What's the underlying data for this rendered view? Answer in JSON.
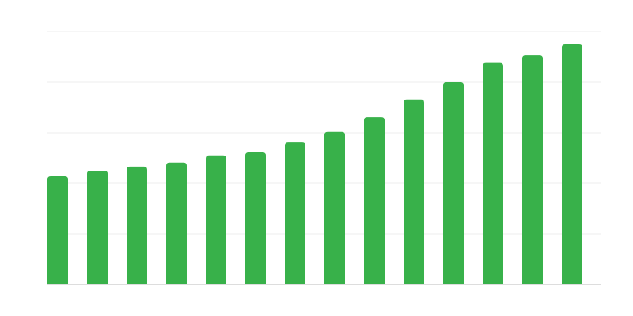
{
  "chart_data": {
    "type": "bar",
    "values": [
      2.14,
      2.25,
      2.33,
      2.41,
      2.55,
      2.61,
      2.81,
      3.02,
      3.31,
      3.66,
      4.0,
      4.38,
      4.53,
      4.75
    ],
    "color": "#38b14a",
    "ylim": [
      0,
      5
    ],
    "yticks": [
      0,
      1,
      2,
      3,
      4,
      5
    ],
    "grid": true
  }
}
